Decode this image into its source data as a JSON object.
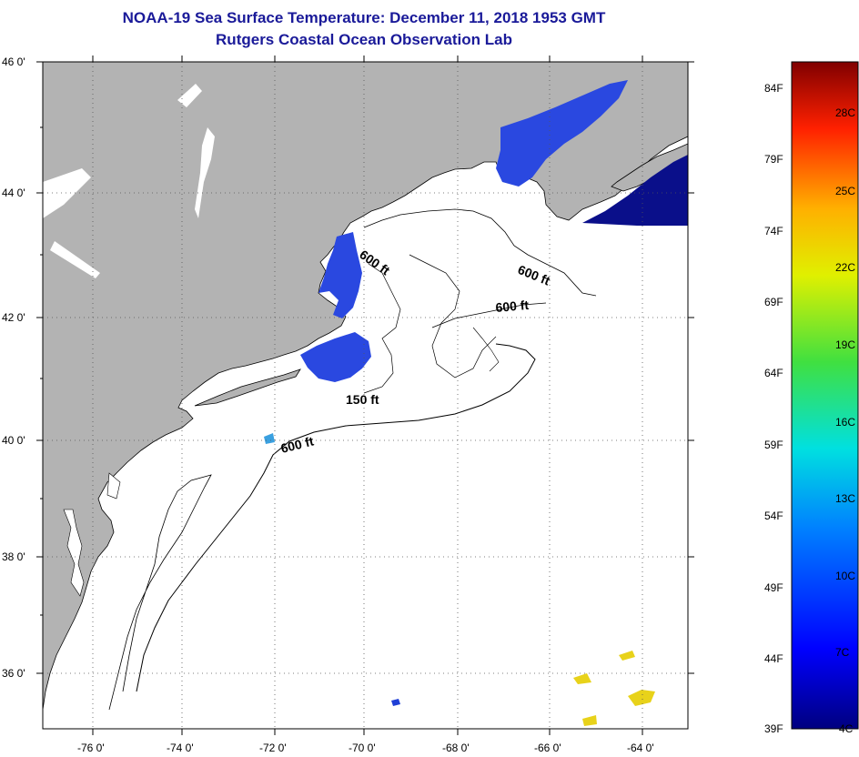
{
  "title": "NOAA-19 Sea Surface Temperature:  December 11, 2018 1953 GMT",
  "subtitle": "Rutgers Coastal Ocean Observation Lab",
  "map": {
    "lat_ticks": [
      "46 0'",
      "44 0'",
      "42 0'",
      "40 0'",
      "38 0'",
      "36 0'"
    ],
    "lon_ticks": [
      "-76 0'",
      "-74 0'",
      "-72 0'",
      "-70 0'",
      "-68 0'",
      "-66 0'",
      "-64 0'"
    ],
    "contour_labels": [
      "600 ft",
      "600 ft",
      "600 ft",
      "150 ft",
      "600 ft"
    ],
    "colors": {
      "land": "#b3b3b3",
      "ocean": "#ffffff",
      "coast": "#000000",
      "sst_cold": "#1f3fd6",
      "sst_deep": "#0a0f8a",
      "sst_warm": "#e8d21a"
    }
  },
  "colorbar": {
    "fahrenheit": [
      "84F",
      "79F",
      "74F",
      "69F",
      "64F",
      "59F",
      "54F",
      "49F",
      "44F",
      "39F"
    ],
    "celsius": [
      "28C",
      "25C",
      "22C",
      "19C",
      "16C",
      "13C",
      "10C",
      "7C",
      "4C"
    ]
  }
}
